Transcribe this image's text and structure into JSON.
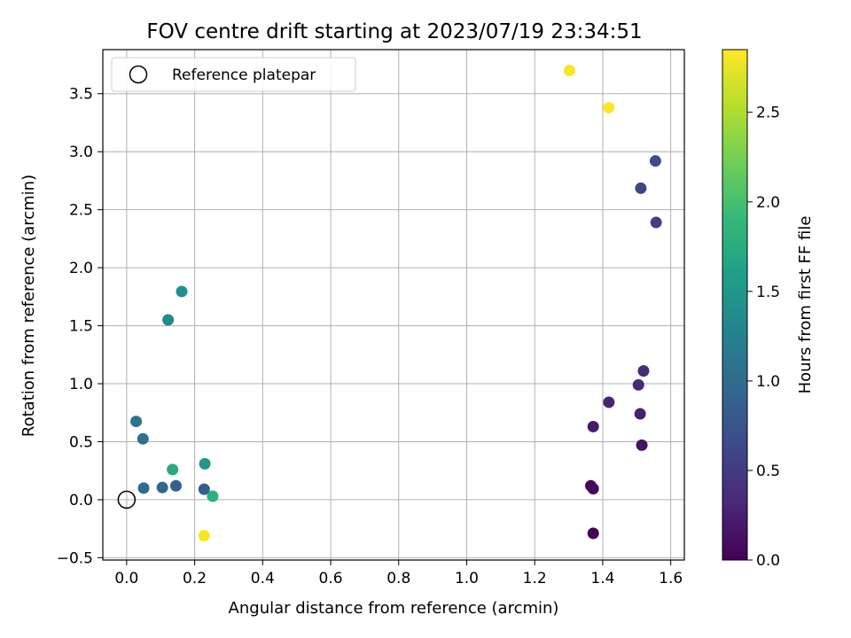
{
  "chart_data": {
    "type": "scatter",
    "title": "FOV centre drift starting at 2023/07/19 23:34:51",
    "xlabel": "Angular distance from reference (arcmin)",
    "ylabel": "Rotation from reference (arcmin)",
    "xlim": [
      -0.07,
      1.64
    ],
    "ylim": [
      -0.52,
      3.88
    ],
    "xticks": [
      "0.0",
      "0.2",
      "0.4",
      "0.6",
      "0.8",
      "1.0",
      "1.2",
      "1.4",
      "1.6"
    ],
    "yticks": [
      "−0.5",
      "0.0",
      "0.5",
      "1.0",
      "1.5",
      "2.0",
      "2.5",
      "3.0",
      "3.5"
    ],
    "grid": true,
    "legend": {
      "position": "top-left",
      "entries": [
        "Reference platepar"
      ]
    },
    "reference_point": {
      "x": 0.0,
      "y": 0.0
    },
    "colorbar": {
      "label": "Hours from first FF file",
      "range": [
        0.0,
        2.85
      ],
      "ticks": [
        "0.0",
        "0.5",
        "1.0",
        "1.5",
        "2.0",
        "2.5"
      ],
      "colormap": "viridis"
    },
    "points": [
      {
        "x": 1.372,
        "y": -0.29,
        "hours": 0.02
      },
      {
        "x": 1.365,
        "y": 0.12,
        "hours": 0.06
      },
      {
        "x": 1.372,
        "y": 0.095,
        "hours": 0.09
      },
      {
        "x": 1.515,
        "y": 0.47,
        "hours": 0.15
      },
      {
        "x": 1.372,
        "y": 0.63,
        "hours": 0.2
      },
      {
        "x": 1.51,
        "y": 0.74,
        "hours": 0.24
      },
      {
        "x": 1.418,
        "y": 0.84,
        "hours": 0.28
      },
      {
        "x": 1.505,
        "y": 0.99,
        "hours": 0.32
      },
      {
        "x": 1.52,
        "y": 1.11,
        "hours": 0.36
      },
      {
        "x": 1.557,
        "y": 2.39,
        "hours": 0.55
      },
      {
        "x": 1.512,
        "y": 2.685,
        "hours": 0.6
      },
      {
        "x": 1.555,
        "y": 2.92,
        "hours": 0.65
      },
      {
        "x": 0.228,
        "y": 0.09,
        "hours": 0.85
      },
      {
        "x": 0.145,
        "y": 0.12,
        "hours": 0.9
      },
      {
        "x": 0.105,
        "y": 0.105,
        "hours": 0.95
      },
      {
        "x": 0.05,
        "y": 0.1,
        "hours": 1.0
      },
      {
        "x": 0.048,
        "y": 0.525,
        "hours": 1.05
      },
      {
        "x": 0.028,
        "y": 0.675,
        "hours": 1.1
      },
      {
        "x": 0.122,
        "y": 1.55,
        "hours": 1.35
      },
      {
        "x": 0.162,
        "y": 1.795,
        "hours": 1.42
      },
      {
        "x": 0.23,
        "y": 0.31,
        "hours": 1.5
      },
      {
        "x": 0.135,
        "y": 0.26,
        "hours": 1.72
      },
      {
        "x": 0.253,
        "y": 0.03,
        "hours": 1.8
      },
      {
        "x": 1.302,
        "y": 3.7,
        "hours": 2.82
      },
      {
        "x": 1.418,
        "y": 3.38,
        "hours": 2.85
      },
      {
        "x": 0.228,
        "y": -0.31,
        "hours": 2.83
      }
    ]
  }
}
